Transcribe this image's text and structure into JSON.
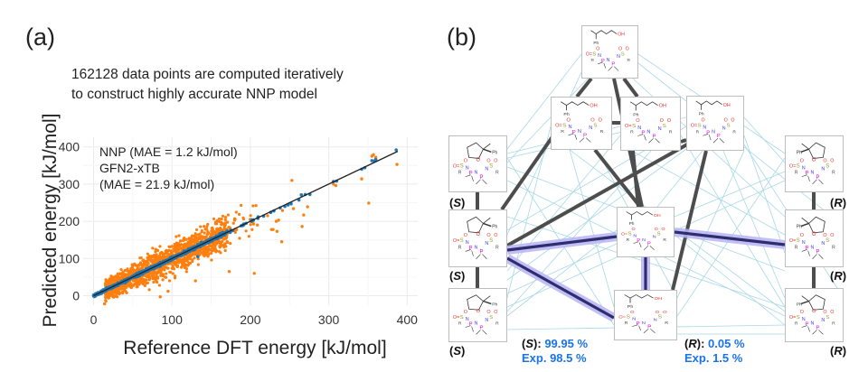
{
  "panel_a": {
    "label": "(a)",
    "caption_line1": "162128 data points are computed iteratively",
    "caption_line2": "to construct highly accurate NNP model"
  },
  "panel_b": {
    "label": "(b)",
    "nodes": [
      {
        "id": "top",
        "desc": "alkene-OH + protonated IDPi (S-OH)"
      },
      {
        "id": "mid1",
        "desc": "alkene-OH + IDPi (N-H)"
      },
      {
        "id": "mid2",
        "desc": "alkene-OH2+ + IDPi anion"
      },
      {
        "id": "mid3",
        "desc": "O-bonded tertiary adduct"
      },
      {
        "id": "s1",
        "desc": "(S)-THF product + IDPi (S-OH)",
        "stereo": "S"
      },
      {
        "id": "s2",
        "desc": "(S)-protonated THF + IDPi anion",
        "stereo": "S"
      },
      {
        "id": "s3",
        "desc": "(S)-THF product + IDPi (N-H)",
        "stereo": "S"
      },
      {
        "id": "c1",
        "desc": "alkene-OH + IDPi (N-H), central"
      },
      {
        "id": "c2",
        "desc": "tertiary carbocation + IDPi anion"
      },
      {
        "id": "r1",
        "desc": "(R)-THF product + IDPi (S-OH)",
        "stereo": "R"
      },
      {
        "id": "r2",
        "desc": "(R)-protonated THF + IDPi anion",
        "stereo": "R"
      },
      {
        "id": "r3",
        "desc": "(R)-THF product + IDPi (N-H)",
        "stereo": "R"
      }
    ],
    "stereo_labels": {
      "S": "S",
      "R": "R"
    },
    "result_S": {
      "key": "S",
      "value": "99.95 %",
      "exp": "Exp. 98.5 %"
    },
    "result_R": {
      "key": "R",
      "value": "0.05 %",
      "exp": "Exp. 1.5 %"
    },
    "colors": {
      "thick_edge": "#4d4d4d",
      "thin_edge": "#a8d8e6",
      "highlight": "#b9b5f5",
      "highlight_core": "#2e2e6e",
      "accent_text": "#1a73e8"
    }
  },
  "chart_data": {
    "type": "scatter",
    "title": "",
    "xlabel": "Reference DFT energy [kJ/mol]",
    "ylabel": "Predicted energy [kJ/mol]",
    "xlim": [
      0,
      410
    ],
    "ylim": [
      -20,
      410
    ],
    "xticks": [
      0,
      100,
      200,
      300,
      400
    ],
    "yticks": [
      0,
      100,
      200,
      300,
      400
    ],
    "grid": true,
    "legend_position": "top-left",
    "annotations": [
      "NNP (MAE = 1.2 kJ/mol)",
      "GFN2-xTB",
      "(MAE = 21.9 kJ/mol)"
    ],
    "total_points": 162128,
    "series": [
      {
        "name": "GFN2-xTB",
        "color": "#ff7f0e",
        "mae": 21.9,
        "dense_cloud": {
          "x_range": [
            15,
            210
          ],
          "center_slope": 1.0,
          "spread": 21.9
        },
        "points": [
          [
            357,
            379
          ],
          [
            387,
            353
          ],
          [
            253,
            310
          ],
          [
            342,
            314
          ],
          [
            351,
            249
          ],
          [
            306,
            300
          ],
          [
            255,
            234
          ],
          [
            273,
            239
          ],
          [
            268,
            217
          ],
          [
            266,
            186
          ],
          [
            222,
            215
          ],
          [
            241,
            229
          ],
          [
            233,
            200
          ],
          [
            236,
            203
          ],
          [
            227,
            178
          ],
          [
            229,
            178
          ],
          [
            234,
            173
          ],
          [
            209,
            190
          ],
          [
            355,
            375
          ],
          [
            360,
            372
          ],
          [
            309,
            296
          ],
          [
            205,
            60
          ],
          [
            173,
            65
          ],
          [
            240,
            145
          ],
          [
            14,
            -22
          ],
          [
            30,
            10
          ],
          [
            85,
            -3
          ],
          [
            95,
            12
          ],
          [
            130,
            40
          ]
        ]
      },
      {
        "name": "NNP",
        "color": "#1f77b4",
        "mae": 1.2,
        "dense_range": [
          0,
          210
        ],
        "points": [
          [
            0,
            0
          ],
          [
            386,
            392
          ],
          [
            358,
            362
          ],
          [
            360,
            366
          ],
          [
            355,
            363
          ],
          [
            342,
            340
          ],
          [
            346,
            344
          ],
          [
            310,
            308
          ],
          [
            306,
            307
          ],
          [
            262,
            257
          ],
          [
            270,
            272
          ],
          [
            265,
            271
          ],
          [
            276,
            272
          ],
          [
            248,
            244
          ],
          [
            252,
            247
          ],
          [
            238,
            236
          ],
          [
            244,
            240
          ],
          [
            226,
            224
          ],
          [
            230,
            228
          ],
          [
            217,
            214
          ],
          [
            210,
            212
          ],
          [
            133,
            105
          ]
        ]
      },
      {
        "name": "identity line",
        "type": "line",
        "color": "#222222",
        "x": [
          0,
          388
        ],
        "y": [
          0,
          388
        ]
      }
    ]
  }
}
